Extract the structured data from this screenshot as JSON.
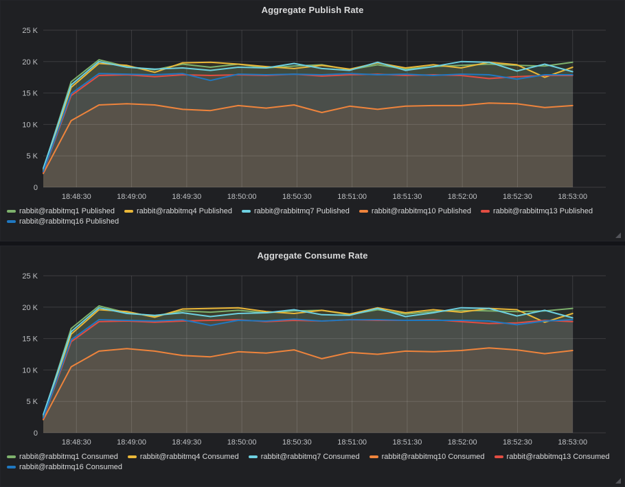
{
  "panels": [
    {
      "name": "aggregate-publish-rate",
      "y_ticks": [
        "0",
        "5 K",
        "10 K",
        "15 K",
        "20 K",
        "25 K"
      ],
      "x_ticks": [
        "18:48:30",
        "18:49:00",
        "18:49:30",
        "18:50:00",
        "18:50:30",
        "18:51:00",
        "18:51:30",
        "18:52:00",
        "18:52:30",
        "18:53:00"
      ]
    },
    {
      "name": "aggregate-consume-rate",
      "y_ticks": [
        "0",
        "5 K",
        "10 K",
        "15 K",
        "20 K",
        "25 K"
      ],
      "x_ticks": [
        "18:48:30",
        "18:49:00",
        "18:49:30",
        "18:50:00",
        "18:50:30",
        "18:51:00",
        "18:51:30",
        "18:52:00",
        "18:52:30",
        "18:53:00"
      ]
    }
  ],
  "chart_data": [
    {
      "type": "line",
      "title": "Aggregate Publish Rate",
      "x": [
        "18:48:15",
        "18:48:30",
        "18:48:45",
        "18:49:00",
        "18:49:15",
        "18:49:30",
        "18:49:45",
        "18:50:00",
        "18:50:15",
        "18:50:30",
        "18:50:45",
        "18:51:00",
        "18:51:15",
        "18:51:30",
        "18:51:45",
        "18:52:00",
        "18:52:15",
        "18:52:30",
        "18:52:45",
        "18:53:00"
      ],
      "ylim": [
        0,
        25000
      ],
      "y_tick_values": [
        0,
        5000,
        10000,
        15000,
        20000,
        25000
      ],
      "grid": true,
      "legend_position": "bottom",
      "fill_opacity": 0.1,
      "series": [
        {
          "name": "rabbit@rabbitmq1 Published",
          "color": "#7EB26D",
          "values": [
            2800,
            16800,
            20300,
            19200,
            18700,
            19600,
            19100,
            19600,
            19000,
            19300,
            19500,
            18700,
            19500,
            18800,
            19200,
            19400,
            19600,
            19400,
            19300,
            19900
          ]
        },
        {
          "name": "rabbit@rabbitmq4 Published",
          "color": "#EAB839",
          "values": [
            2600,
            15900,
            19700,
            19400,
            18300,
            19800,
            19900,
            19600,
            19200,
            18900,
            19400,
            18800,
            19800,
            19000,
            19500,
            19000,
            19900,
            19500,
            17500,
            19100
          ]
        },
        {
          "name": "rabbit@rabbitmq7 Published",
          "color": "#6ED0E0",
          "values": [
            3000,
            16300,
            20000,
            19100,
            18800,
            19000,
            18600,
            19100,
            19000,
            19700,
            18900,
            18600,
            19900,
            18600,
            19200,
            20000,
            19900,
            18500,
            19600,
            18400
          ]
        },
        {
          "name": "rabbit@rabbitmq10 Published",
          "color": "#EF843C",
          "values": [
            2200,
            10600,
            13100,
            13300,
            13100,
            12400,
            12200,
            13000,
            12600,
            13100,
            11900,
            12900,
            12400,
            12900,
            13000,
            13000,
            13400,
            13300,
            12700,
            13000
          ]
        },
        {
          "name": "rabbit@rabbitmq13 Published",
          "color": "#E24D42",
          "values": [
            2400,
            14600,
            17800,
            17900,
            17600,
            17900,
            17800,
            17900,
            17800,
            18000,
            17700,
            17900,
            18000,
            17800,
            17900,
            17800,
            17300,
            17600,
            17800,
            17800
          ]
        },
        {
          "name": "rabbit@rabbitmq16 Published",
          "color": "#1F78C1",
          "values": [
            2500,
            14900,
            18100,
            18000,
            17900,
            18100,
            17000,
            18000,
            17900,
            18000,
            17900,
            18100,
            17900,
            18000,
            17800,
            18000,
            17900,
            17200,
            17900,
            17900
          ]
        }
      ]
    },
    {
      "type": "line",
      "title": "Aggregate Consume Rate",
      "x": [
        "18:48:15",
        "18:48:30",
        "18:48:45",
        "18:49:00",
        "18:49:15",
        "18:49:30",
        "18:49:45",
        "18:50:00",
        "18:50:15",
        "18:50:30",
        "18:50:45",
        "18:51:00",
        "18:51:15",
        "18:51:30",
        "18:51:45",
        "18:52:00",
        "18:52:15",
        "18:52:30",
        "18:52:45",
        "18:53:00"
      ],
      "ylim": [
        0,
        25000
      ],
      "y_tick_values": [
        0,
        5000,
        10000,
        15000,
        20000,
        25000
      ],
      "grid": true,
      "legend_position": "bottom",
      "fill_opacity": 0.1,
      "series": [
        {
          "name": "rabbit@rabbitmq1 Consumed",
          "color": "#7EB26D",
          "values": [
            2700,
            16600,
            20200,
            19100,
            18600,
            19400,
            19200,
            19500,
            19100,
            19400,
            19500,
            18800,
            19600,
            18900,
            19300,
            19500,
            19400,
            19300,
            19400,
            19800
          ]
        },
        {
          "name": "rabbit@rabbitmq4 Consumed",
          "color": "#EAB839",
          "values": [
            2500,
            15700,
            19600,
            19300,
            18400,
            19700,
            19800,
            19900,
            19300,
            19000,
            19500,
            18900,
            19900,
            19100,
            19600,
            19200,
            19800,
            19600,
            17600,
            19000
          ]
        },
        {
          "name": "rabbit@rabbitmq7 Consumed",
          "color": "#6ED0E0",
          "values": [
            2900,
            16100,
            19900,
            19000,
            18700,
            19100,
            18500,
            19000,
            19100,
            19600,
            18800,
            18700,
            19800,
            18500,
            19100,
            19900,
            19800,
            18600,
            19500,
            18300
          ]
        },
        {
          "name": "rabbit@rabbitmq10 Consumed",
          "color": "#EF843C",
          "values": [
            2100,
            10500,
            13000,
            13400,
            13000,
            12300,
            12100,
            12900,
            12700,
            13200,
            11800,
            12800,
            12500,
            13000,
            12900,
            13100,
            13500,
            13200,
            12600,
            13100
          ]
        },
        {
          "name": "rabbit@rabbitmq13 Consumed",
          "color": "#E24D42",
          "values": [
            2300,
            14500,
            17700,
            17800,
            17600,
            17800,
            17900,
            18000,
            17700,
            17900,
            17800,
            18000,
            17900,
            17900,
            18000,
            17700,
            17400,
            17500,
            17900,
            17700
          ]
        },
        {
          "name": "rabbit@rabbitmq16 Consumed",
          "color": "#1F78C1",
          "values": [
            2400,
            14800,
            18000,
            17900,
            17800,
            18000,
            17100,
            17900,
            17800,
            18100,
            17800,
            18000,
            18000,
            17900,
            17900,
            17900,
            17800,
            17200,
            17800,
            18000
          ]
        }
      ]
    }
  ]
}
